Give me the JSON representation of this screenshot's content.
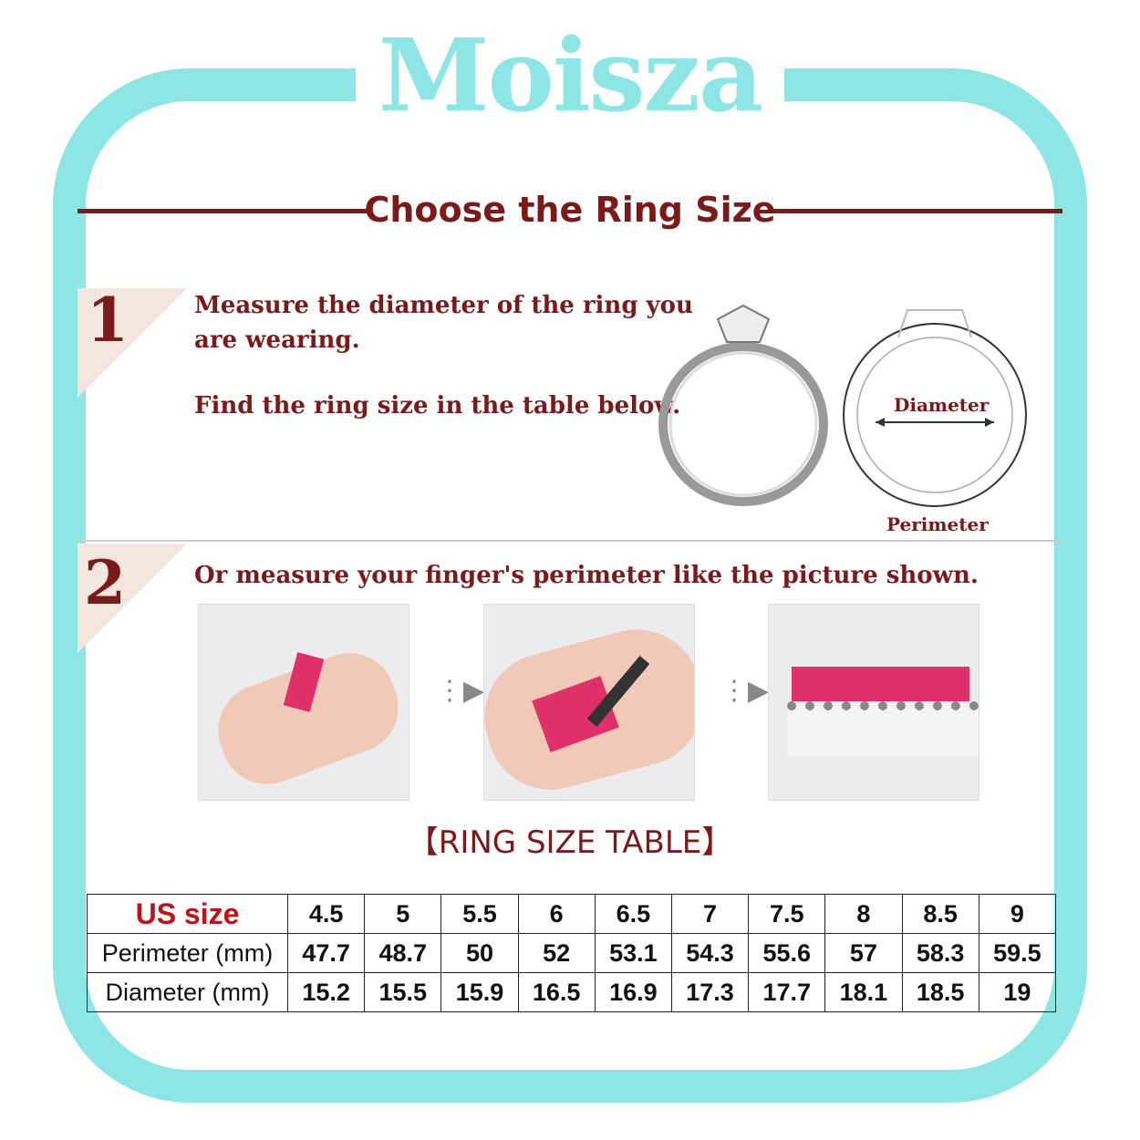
{
  "brand": "Moisza",
  "title": "Choose the Ring Size",
  "step1": {
    "number": "1",
    "line1": "Measure the diameter of the ring you",
    "line2": "are wearing.",
    "line3": "Find the ring size in the table below.",
    "diagram_diameter": "Diameter",
    "diagram_perimeter": "Perimeter"
  },
  "step2": {
    "number": "2",
    "text": "Or measure your finger's perimeter like the picture shown."
  },
  "table_title": "【RING SIZE TABLE】",
  "table": {
    "headers": [
      "US size",
      "Perimeter (mm)",
      "Diameter (mm)"
    ],
    "us_size": [
      "4.5",
      "5",
      "5.5",
      "6",
      "6.5",
      "7",
      "7.5",
      "8",
      "8.5",
      "9"
    ],
    "perimeter": [
      "47.7",
      "48.7",
      "50",
      "52",
      "53.1",
      "54.3",
      "55.6",
      "57",
      "58.3",
      "59.5"
    ],
    "diameter": [
      "15.2",
      "15.5",
      "15.9",
      "16.5",
      "16.9",
      "17.3",
      "17.7",
      "18.1",
      "18.5",
      "19"
    ]
  },
  "colors": {
    "brand": "#8ee6e4",
    "accent": "#7a1a1a",
    "us_size": "#c0101a",
    "tape": "#e0306a"
  }
}
